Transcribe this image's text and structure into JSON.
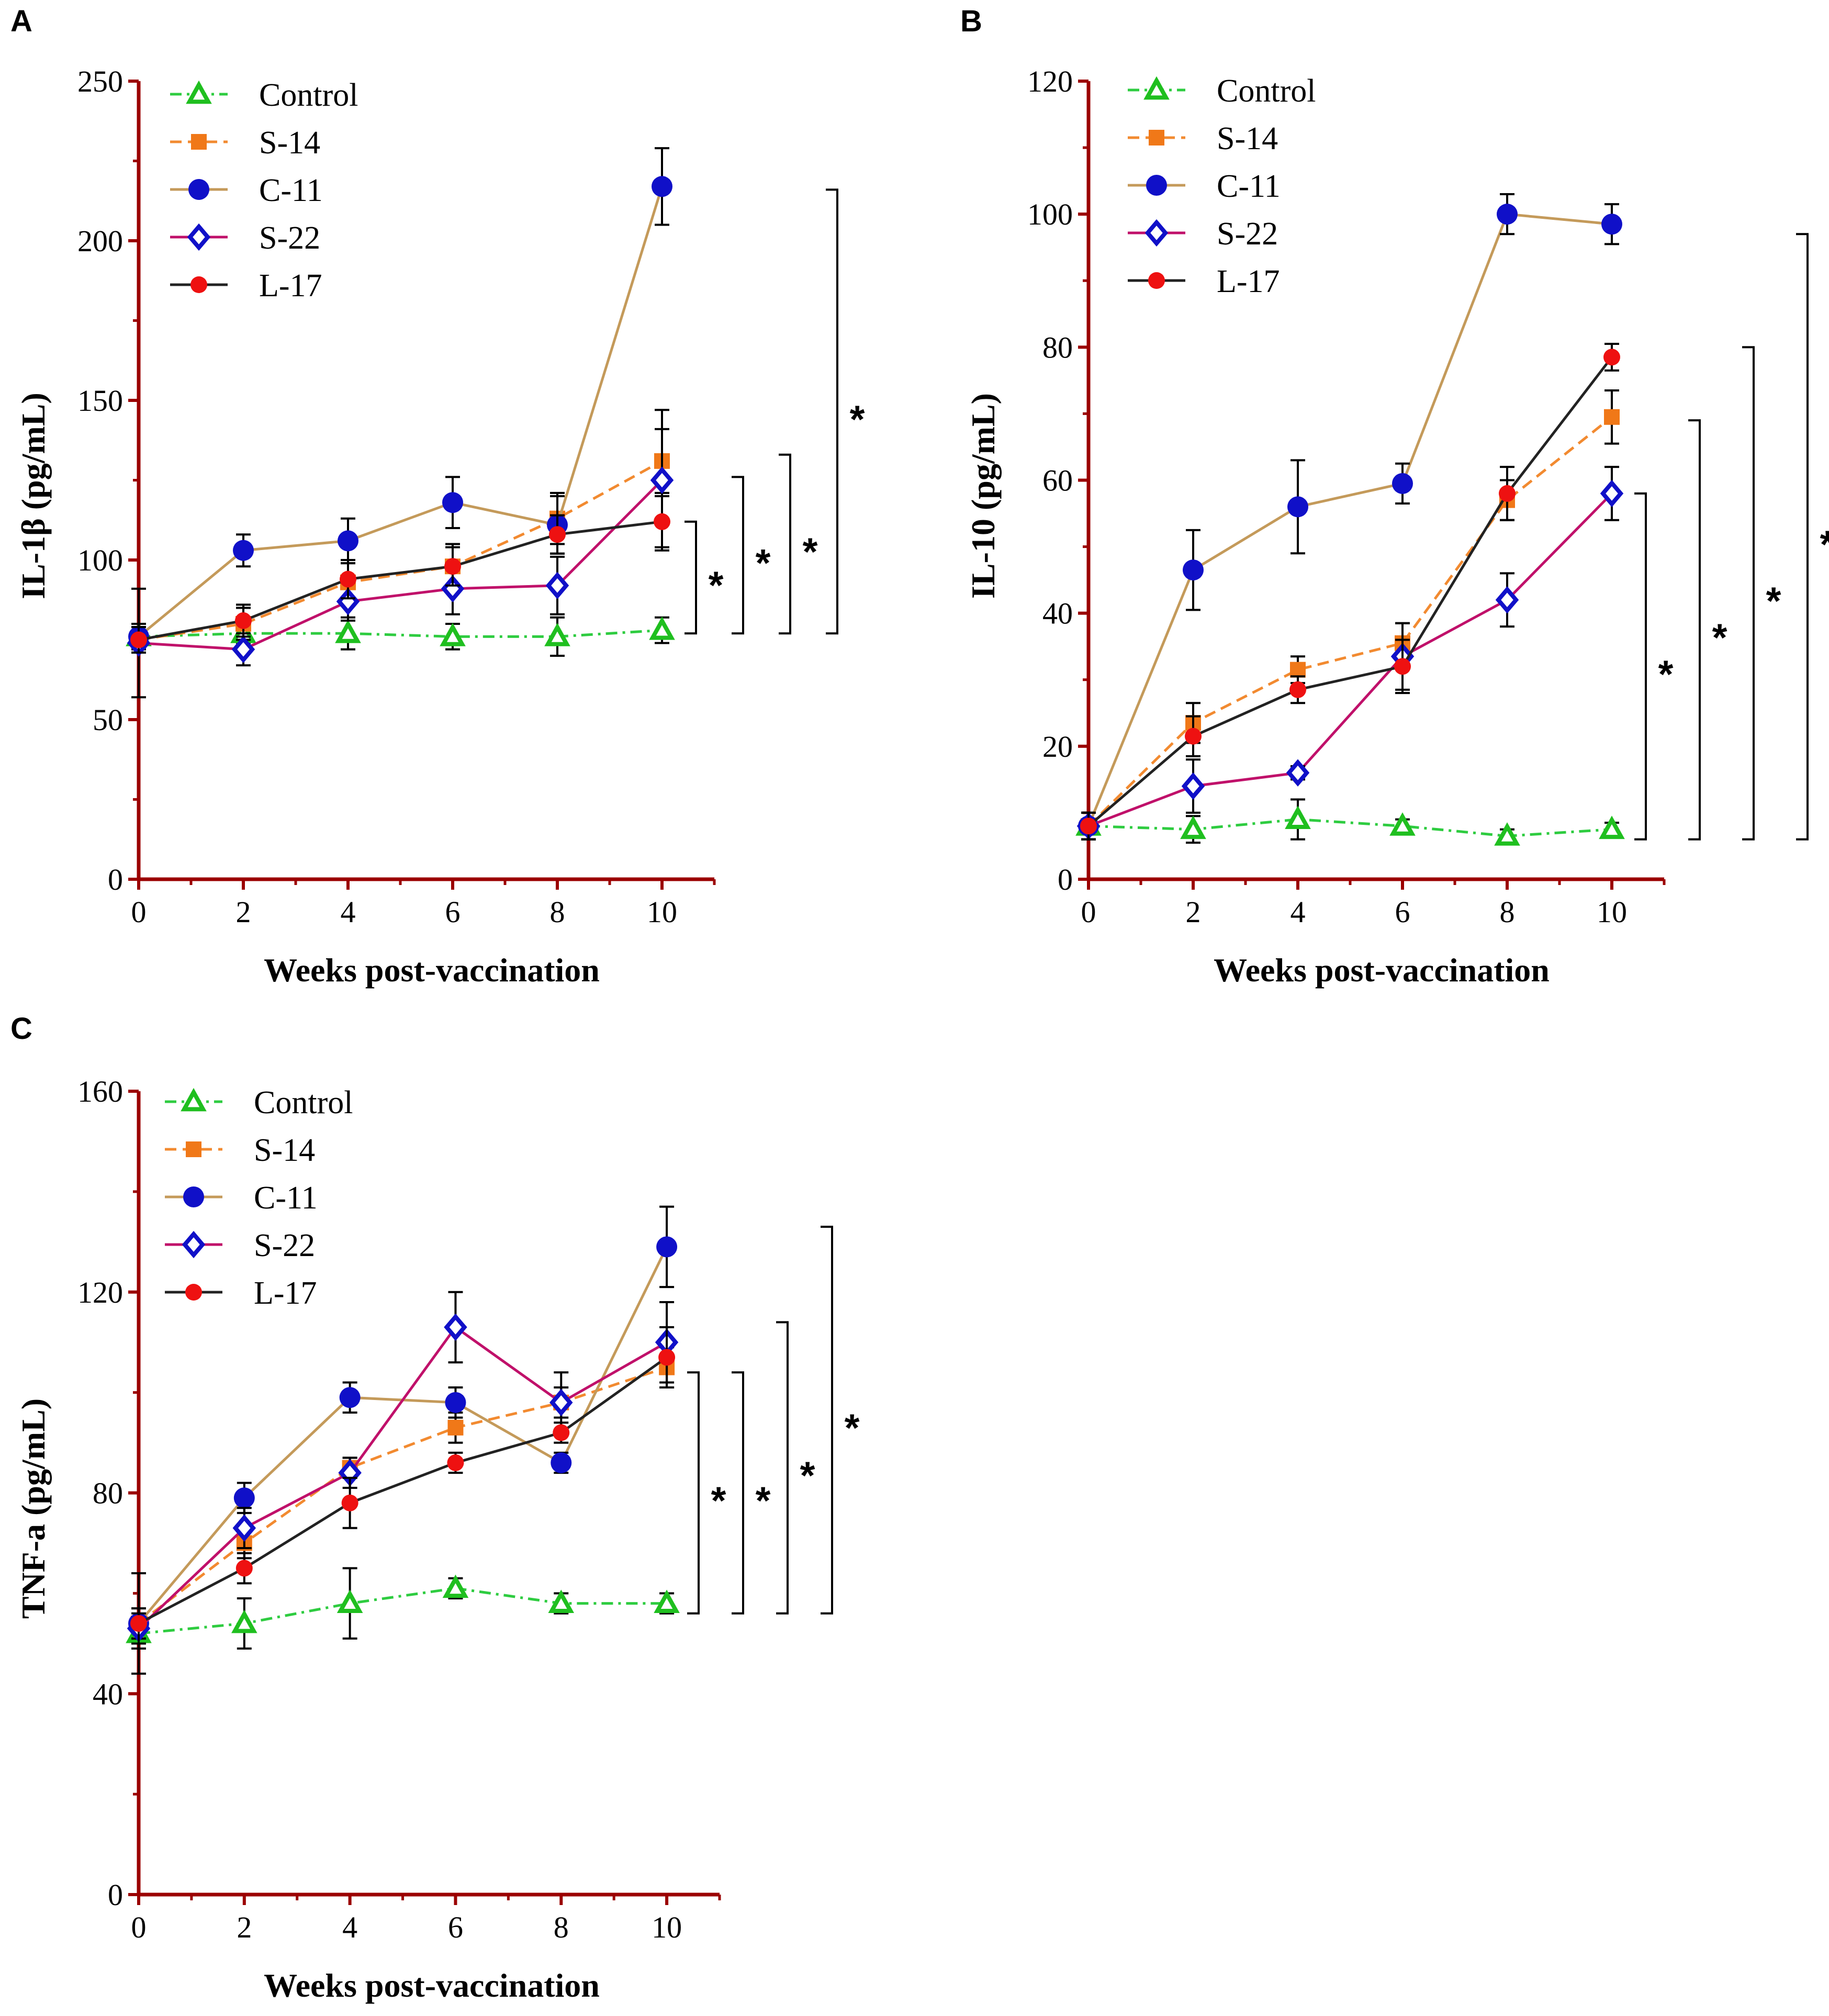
{
  "colors": {
    "axis": "#9b0000",
    "bracket": "#000000",
    "error_bar": "#000000"
  },
  "series_style": {
    "Control": {
      "line": "#2ecc40",
      "dash": "dashdot",
      "marker": "triangle-open",
      "marker_color": "#1fbf1f"
    },
    "S-14": {
      "line": "#f28a30",
      "dash": "dash",
      "marker": "square",
      "marker_color": "#f07818"
    },
    "C-11": {
      "line": "#c49a5a",
      "dash": "solid",
      "marker": "circle",
      "marker_color": "#1010c8"
    },
    "S-22": {
      "line": "#c0106a",
      "dash": "solid",
      "marker": "diamond-open",
      "marker_color": "#1010c8"
    },
    "L-17": {
      "line": "#222222",
      "dash": "solid",
      "marker": "circle-small",
      "marker_color": "#ee1111"
    }
  },
  "chart_data": [
    {
      "panel": "A",
      "type": "line",
      "xlabel": "Weeks post-vaccination",
      "ylabel": "IL-1β (pg/mL)",
      "x": [
        0,
        2,
        4,
        6,
        8,
        10
      ],
      "xlim": [
        0,
        11
      ],
      "ylim": [
        0,
        250
      ],
      "yticks": [
        0,
        50,
        100,
        150,
        200,
        250
      ],
      "legend_position": "top-left",
      "series": [
        {
          "name": "Control",
          "values": [
            76,
            77,
            77,
            76,
            76,
            78
          ],
          "errors": [
            3,
            3,
            5,
            4,
            6,
            4
          ]
        },
        {
          "name": "S-14",
          "values": [
            75,
            80,
            93,
            98,
            113,
            131
          ],
          "errors": [
            4,
            5,
            6,
            7,
            8,
            10
          ]
        },
        {
          "name": "C-11",
          "values": [
            76,
            103,
            106,
            118,
            111,
            217
          ],
          "errors": [
            4,
            5,
            7,
            8,
            9,
            12
          ]
        },
        {
          "name": "S-22",
          "values": [
            74,
            72,
            87,
            91,
            92,
            125
          ],
          "errors": [
            17,
            5,
            6,
            8,
            9,
            22
          ]
        },
        {
          "name": "L-17",
          "values": [
            75,
            81,
            94,
            98,
            108,
            112
          ],
          "errors": [
            4,
            5,
            6,
            6,
            6,
            8
          ]
        }
      ],
      "significance": [
        {
          "label": "*",
          "from": 77,
          "to": 112
        },
        {
          "label": "*",
          "from": 77,
          "to": 126
        },
        {
          "label": "*",
          "from": 77,
          "to": 133
        },
        {
          "label": "*",
          "from": 77,
          "to": 216
        }
      ]
    },
    {
      "panel": "B",
      "type": "line",
      "xlabel": "Weeks post-vaccination",
      "ylabel": "IL-10 (pg/mL)",
      "x": [
        0,
        2,
        4,
        6,
        8,
        10
      ],
      "xlim": [
        0,
        11
      ],
      "ylim": [
        0,
        120
      ],
      "yticks": [
        0,
        20,
        40,
        60,
        80,
        100,
        120
      ],
      "legend_position": "top-left",
      "series": [
        {
          "name": "Control",
          "values": [
            8,
            7.5,
            9,
            8,
            6.5,
            7.5
          ],
          "errors": [
            2,
            2,
            3,
            1,
            1,
            1
          ]
        },
        {
          "name": "S-14",
          "values": [
            8,
            23.5,
            31.5,
            35.5,
            57,
            69.5
          ],
          "errors": [
            2,
            3,
            2,
            3,
            3,
            4
          ]
        },
        {
          "name": "C-11",
          "values": [
            8,
            46.5,
            56,
            59.5,
            100,
            98.5
          ],
          "errors": [
            2,
            6,
            7,
            3,
            3,
            3
          ]
        },
        {
          "name": "S-22",
          "values": [
            8,
            14,
            16,
            33.5,
            42,
            58
          ],
          "errors": [
            2,
            4,
            1,
            5,
            4,
            4
          ]
        },
        {
          "name": "L-17",
          "values": [
            8,
            21.5,
            28.5,
            32,
            58,
            78.5
          ],
          "errors": [
            2,
            3,
            2,
            4,
            4,
            2
          ]
        }
      ],
      "significance": [
        {
          "label": "*",
          "from": 6,
          "to": 58
        },
        {
          "label": "*",
          "from": 6,
          "to": 69
        },
        {
          "label": "*",
          "from": 6,
          "to": 80
        },
        {
          "label": "*",
          "from": 6,
          "to": 97
        }
      ]
    },
    {
      "panel": "C",
      "type": "line",
      "xlabel": "Weeks post-vaccination",
      "ylabel": "TNF-a (pg/mL)",
      "x": [
        0,
        2,
        4,
        6,
        8,
        10
      ],
      "xlim": [
        0,
        11
      ],
      "ylim": [
        0,
        160
      ],
      "yticks": [
        0,
        40,
        80,
        120,
        160
      ],
      "legend_position": "top-left",
      "series": [
        {
          "name": "Control",
          "values": [
            52,
            54,
            58,
            61,
            58,
            58
          ],
          "errors": [
            3,
            5,
            7,
            2,
            2,
            2
          ]
        },
        {
          "name": "S-14",
          "values": [
            54,
            70,
            85,
            93,
            98,
            105
          ],
          "errors": [
            3,
            3,
            2,
            3,
            3,
            4
          ]
        },
        {
          "name": "C-11",
          "values": [
            54,
            79,
            99,
            98,
            86,
            129
          ],
          "errors": [
            3,
            3,
            3,
            3,
            2,
            8
          ]
        },
        {
          "name": "S-22",
          "values": [
            53,
            73,
            84,
            113,
            98,
            110
          ],
          "errors": [
            3,
            4,
            3,
            7,
            6,
            8
          ]
        },
        {
          "name": "L-17",
          "values": [
            54,
            65,
            78,
            86,
            92,
            107
          ],
          "errors": [
            10,
            3,
            5,
            2,
            2,
            6
          ]
        }
      ],
      "significance": [
        {
          "label": "*",
          "from": 56,
          "to": 104
        },
        {
          "label": "*",
          "from": 56,
          "to": 104
        },
        {
          "label": "*",
          "from": 56,
          "to": 114
        },
        {
          "label": "*",
          "from": 56,
          "to": 133
        }
      ]
    }
  ]
}
